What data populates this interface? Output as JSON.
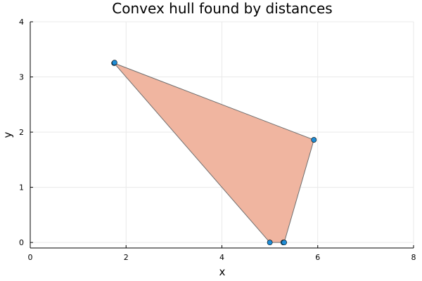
{
  "chart_data": {
    "type": "scatter",
    "title": "Convex hull found by distances",
    "xlabel": "x",
    "ylabel": "y",
    "xlim": [
      0,
      8
    ],
    "ylim": [
      -0.1,
      4
    ],
    "xticks": [
      0,
      2,
      4,
      6,
      8
    ],
    "yticks": [
      0,
      1,
      2,
      3,
      4
    ],
    "xtick_labels": [
      "0",
      "2",
      "4",
      "6",
      "8"
    ],
    "ytick_labels": [
      "0",
      "1",
      "2",
      "3",
      "4"
    ],
    "grid": true,
    "legend": "none",
    "hull": {
      "x": [
        1.75,
        5.92,
        5.3,
        5.0,
        1.75
      ],
      "y": [
        3.25,
        1.86,
        0.0,
        0.0,
        3.25
      ],
      "fill_color": "#f0b5a0",
      "stroke_color": "#707070"
    },
    "points": {
      "x": [
        1.75,
        1.76,
        5.92,
        5.0,
        5.28,
        5.3
      ],
      "y": [
        3.25,
        3.26,
        1.86,
        0.0,
        0.0,
        0.0
      ],
      "color": "#1f8dd6"
    }
  }
}
